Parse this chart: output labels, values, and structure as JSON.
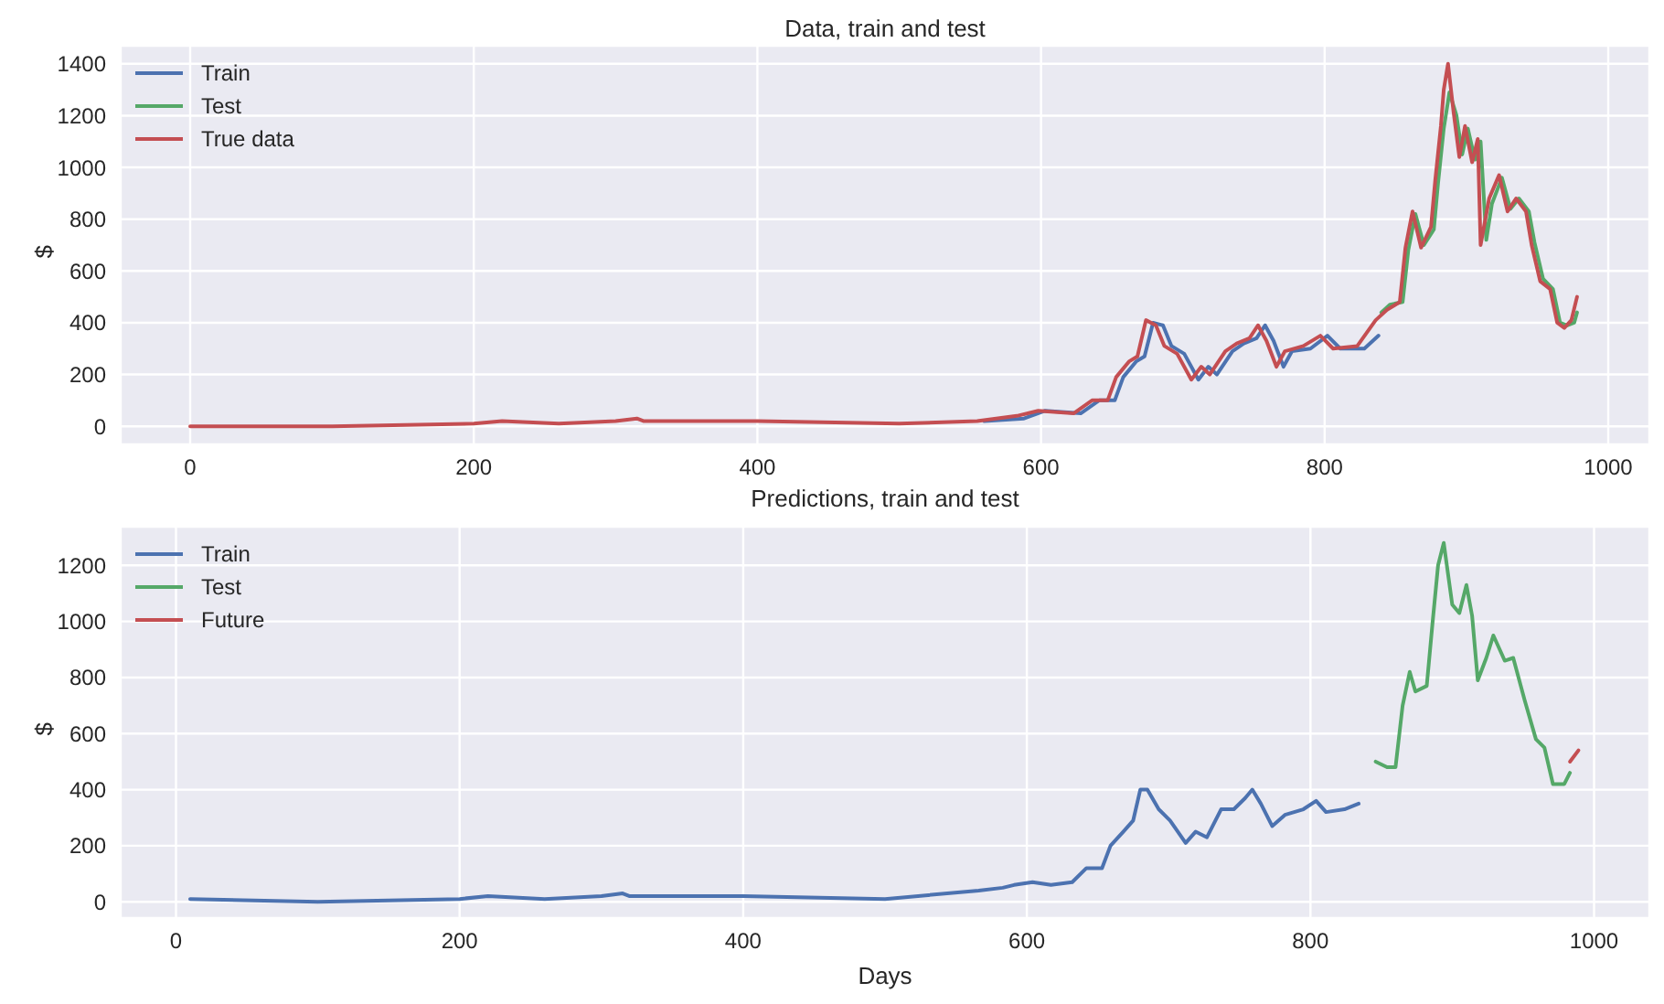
{
  "chart_data": [
    {
      "type": "line",
      "title": "Data, train and test",
      "ylabel": "$",
      "legend": "top left",
      "grid": true,
      "xlim": [
        -49,
        1029
      ],
      "xticks": [
        0,
        200,
        400,
        600,
        800,
        1000
      ],
      "ylim": [
        -70,
        1470
      ],
      "yticks": [
        0,
        200,
        400,
        600,
        800,
        1000,
        1200,
        1400
      ],
      "series": [
        {
          "name": "Train",
          "color": "#4c72b0",
          "x": [
            560,
            588,
            603,
            628,
            641,
            652,
            658,
            667,
            673,
            679,
            686,
            692,
            701,
            711,
            718,
            724,
            735,
            743,
            752,
            758,
            764,
            771,
            777,
            790,
            802,
            811,
            828,
            838
          ],
          "values": [
            20,
            30,
            60,
            50,
            100,
            100,
            190,
            250,
            270,
            400,
            390,
            310,
            280,
            180,
            230,
            200,
            290,
            320,
            340,
            390,
            330,
            230,
            290,
            300,
            350,
            300,
            300,
            350
          ]
        },
        {
          "name": "Test",
          "color": "#55a868",
          "x": [
            840,
            846,
            855,
            859,
            864,
            870,
            877,
            880,
            884,
            888,
            893,
            897,
            901,
            906,
            910,
            914,
            918,
            925,
            931,
            937,
            944,
            948,
            954,
            961,
            966,
            971,
            976,
            978
          ],
          "values": [
            440,
            470,
            480,
            680,
            820,
            700,
            760,
            940,
            1150,
            1290,
            1200,
            1050,
            1150,
            1030,
            1100,
            720,
            860,
            960,
            840,
            880,
            830,
            710,
            570,
            530,
            400,
            390,
            400,
            440
          ]
        },
        {
          "name": "True data",
          "color": "#c44e52",
          "x": [
            0,
            100,
            200,
            220,
            260,
            300,
            315,
            320,
            400,
            500,
            555,
            583,
            598,
            623,
            636,
            647,
            653,
            662,
            668,
            674,
            681,
            687,
            696,
            706,
            713,
            719,
            730,
            738,
            747,
            753,
            759,
            766,
            772,
            785,
            797,
            806,
            823,
            836,
            844,
            853,
            857,
            862,
            868,
            875,
            878,
            882,
            884,
            887,
            891,
            895,
            899,
            904,
            908,
            910,
            916,
            923,
            929,
            935,
            942,
            946,
            952,
            959,
            964,
            969,
            974,
            978
          ],
          "values": [
            0,
            0,
            10,
            20,
            10,
            20,
            30,
            20,
            20,
            10,
            20,
            40,
            60,
            50,
            100,
            100,
            190,
            250,
            270,
            410,
            390,
            310,
            280,
            180,
            230,
            200,
            290,
            320,
            340,
            390,
            330,
            230,
            290,
            310,
            350,
            300,
            310,
            410,
            450,
            480,
            690,
            830,
            690,
            770,
            950,
            1160,
            1300,
            1400,
            1210,
            1040,
            1160,
            1020,
            1110,
            700,
            880,
            970,
            830,
            880,
            830,
            700,
            560,
            530,
            400,
            380,
            410,
            500
          ]
        }
      ]
    },
    {
      "type": "line",
      "title": "Predictions, train and test",
      "xlabel": "Days",
      "ylabel": "$",
      "legend": "top left",
      "grid": true,
      "xlim": [
        -39,
        1039
      ],
      "xticks": [
        0,
        200,
        400,
        600,
        800,
        1000
      ],
      "ylim": [
        -58,
        1338
      ],
      "yticks": [
        0,
        200,
        400,
        600,
        800,
        1000,
        1200
      ],
      "series": [
        {
          "name": "Train",
          "color": "#4c72b0",
          "x": [
            10,
            100,
            200,
            220,
            260,
            300,
            315,
            320,
            400,
            500,
            566,
            583,
            591,
            604,
            617,
            632,
            642,
            653,
            659,
            668,
            675,
            680,
            685,
            693,
            701,
            712,
            719,
            727,
            737,
            746,
            754,
            759,
            765,
            773,
            782,
            795,
            804,
            811,
            824,
            834
          ],
          "values": [
            10,
            0,
            10,
            20,
            10,
            20,
            30,
            20,
            20,
            10,
            40,
            50,
            60,
            70,
            60,
            70,
            120,
            120,
            200,
            250,
            290,
            400,
            400,
            330,
            290,
            210,
            250,
            230,
            330,
            330,
            370,
            400,
            350,
            270,
            310,
            330,
            360,
            320,
            330,
            350
          ]
        },
        {
          "name": "Test",
          "color": "#55a868",
          "x": [
            846,
            854,
            860,
            865,
            870,
            874,
            882,
            886,
            890,
            894,
            900,
            905,
            910,
            914,
            918,
            924,
            929,
            937,
            943,
            951,
            959,
            965,
            971,
            979,
            983
          ],
          "values": [
            500,
            480,
            480,
            700,
            820,
            750,
            770,
            990,
            1200,
            1280,
            1060,
            1030,
            1130,
            1020,
            790,
            870,
            950,
            860,
            870,
            720,
            580,
            550,
            420,
            420,
            460
          ]
        },
        {
          "name": "Future",
          "color": "#c44e52",
          "x": [
            983,
            989
          ],
          "values": [
            500,
            540
          ]
        }
      ]
    }
  ]
}
